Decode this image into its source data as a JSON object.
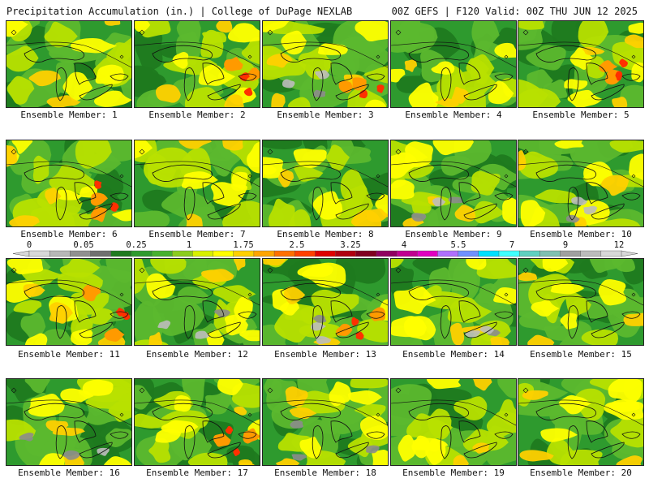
{
  "header": {
    "title_left": "Precipitation Accumulation (in.) | College of DuPage NEXLAB",
    "title_right": "00Z GEFS | F120 Valid: 00Z THU JUN 12 2025"
  },
  "panels": [
    {
      "label": "Ensemble Member: 1"
    },
    {
      "label": "Ensemble Member: 2"
    },
    {
      "label": "Ensemble Member: 3"
    },
    {
      "label": "Ensemble Member: 4"
    },
    {
      "label": "Ensemble Member: 5"
    },
    {
      "label": "Ensemble Member: 6"
    },
    {
      "label": "Ensemble Member: 7"
    },
    {
      "label": "Ensemble Member: 8"
    },
    {
      "label": "Ensemble Member: 9"
    },
    {
      "label": "Ensemble Member: 10"
    },
    {
      "label": "Ensemble Member: 11"
    },
    {
      "label": "Ensemble Member: 12"
    },
    {
      "label": "Ensemble Member: 13"
    },
    {
      "label": "Ensemble Member: 14"
    },
    {
      "label": "Ensemble Member: 15"
    },
    {
      "label": "Ensemble Member: 16"
    },
    {
      "label": "Ensemble Member: 17"
    },
    {
      "label": "Ensemble Member: 18"
    },
    {
      "label": "Ensemble Member: 19"
    },
    {
      "label": "Ensemble Member: 20"
    }
  ],
  "colorbar": {
    "labels": [
      "0",
      "0.05",
      "0.25",
      "1",
      "1.75",
      "2.5",
      "3.25",
      "4",
      "5.5",
      "7",
      "9",
      "12"
    ],
    "colors": [
      "#d8d8d8",
      "#b8b8b8",
      "#909090",
      "#707070",
      "#1f7a1f",
      "#2e9a2e",
      "#47b02e",
      "#8bcc1e",
      "#d8f000",
      "#ffff00",
      "#ffd000",
      "#ffa500",
      "#ff7000",
      "#ff4000",
      "#e00000",
      "#b00010",
      "#800020",
      "#900060",
      "#c00090",
      "#e000c0",
      "#b070ff",
      "#7090ff",
      "#00e0ff",
      "#40ffff",
      "#60d0c0",
      "#80c0b0",
      "#a0a0a0",
      "#bcbcbc",
      "#d8d8d8"
    ]
  },
  "field_colors": {
    "dark_green": "#1f7a1f",
    "green": "#2e9a2e",
    "light_green": "#5cb82e",
    "yellow_green": "#b8e000",
    "yellow": "#ffff00",
    "gold": "#ffd000",
    "orange": "#ff9a00",
    "red": "#ff3000",
    "gray": "#8c8c8c",
    "light_gray": "#bdbdbd"
  }
}
